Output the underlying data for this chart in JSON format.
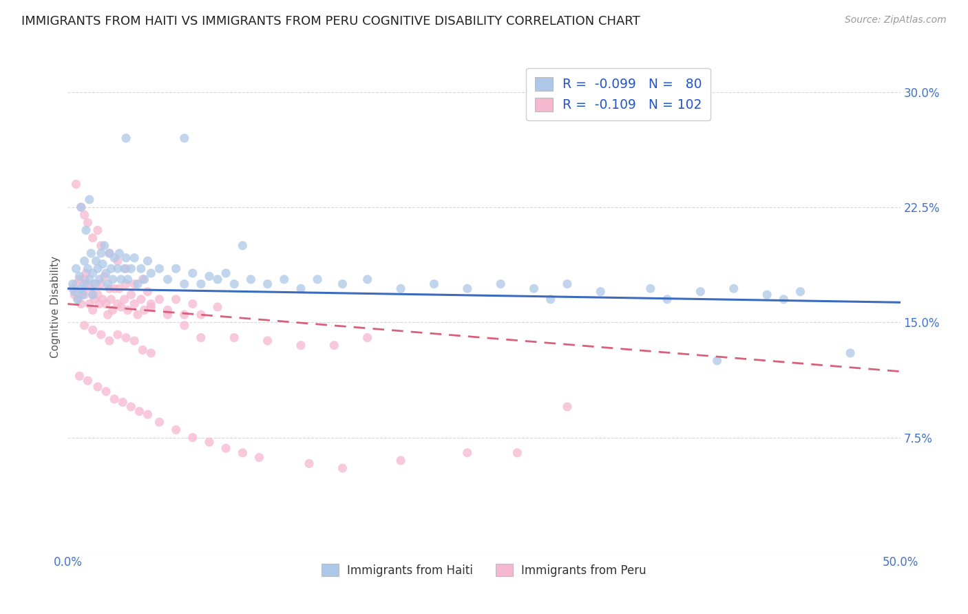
{
  "title": "IMMIGRANTS FROM HAITI VS IMMIGRANTS FROM PERU COGNITIVE DISABILITY CORRELATION CHART",
  "source_text": "Source: ZipAtlas.com",
  "ylabel": "Cognitive Disability",
  "xlim": [
    0.0,
    0.5
  ],
  "ylim": [
    0.0,
    0.32
  ],
  "xticks": [
    0.0,
    0.1,
    0.2,
    0.3,
    0.4,
    0.5
  ],
  "yticks": [
    0.0,
    0.075,
    0.15,
    0.225,
    0.3
  ],
  "haiti_R": -0.099,
  "haiti_N": 80,
  "peru_R": -0.109,
  "peru_N": 102,
  "haiti_color": "#adc8e8",
  "peru_color": "#f5b8cf",
  "haiti_line_color": "#3b6bbf",
  "peru_line_color": "#d9607a",
  "legend_label_haiti": "Immigrants from Haiti",
  "legend_label_peru": "Immigrants from Peru",
  "background_color": "#ffffff",
  "grid_color": "#d8d8d8",
  "title_color": "#222222",
  "title_fontsize": 13,
  "axis_label_color": "#4472c4",
  "haiti_trend_x0": 0.0,
  "haiti_trend_y0": 0.172,
  "haiti_trend_x1": 0.5,
  "haiti_trend_y1": 0.163,
  "peru_trend_x0": 0.0,
  "peru_trend_y0": 0.162,
  "peru_trend_x1": 0.5,
  "peru_trend_y1": 0.118,
  "haiti_scatter_x": [
    0.003,
    0.004,
    0.005,
    0.006,
    0.007,
    0.008,
    0.009,
    0.01,
    0.01,
    0.011,
    0.012,
    0.013,
    0.014,
    0.015,
    0.015,
    0.016,
    0.017,
    0.018,
    0.019,
    0.02,
    0.021,
    0.022,
    0.023,
    0.024,
    0.025,
    0.026,
    0.027,
    0.028,
    0.03,
    0.031,
    0.032,
    0.034,
    0.035,
    0.036,
    0.038,
    0.04,
    0.042,
    0.044,
    0.046,
    0.048,
    0.05,
    0.055,
    0.06,
    0.065,
    0.07,
    0.075,
    0.08,
    0.085,
    0.09,
    0.095,
    0.1,
    0.11,
    0.12,
    0.13,
    0.14,
    0.15,
    0.165,
    0.18,
    0.2,
    0.22,
    0.24,
    0.26,
    0.28,
    0.3,
    0.32,
    0.35,
    0.38,
    0.4,
    0.42,
    0.44,
    0.008,
    0.013,
    0.035,
    0.07,
    0.105,
    0.29,
    0.36,
    0.39,
    0.43,
    0.47
  ],
  "haiti_scatter_y": [
    0.175,
    0.17,
    0.185,
    0.165,
    0.18,
    0.172,
    0.168,
    0.19,
    0.175,
    0.21,
    0.185,
    0.178,
    0.195,
    0.182,
    0.168,
    0.175,
    0.19,
    0.185,
    0.178,
    0.195,
    0.188,
    0.2,
    0.182,
    0.175,
    0.195,
    0.185,
    0.178,
    0.192,
    0.185,
    0.195,
    0.178,
    0.185,
    0.192,
    0.178,
    0.185,
    0.192,
    0.175,
    0.185,
    0.178,
    0.19,
    0.182,
    0.185,
    0.178,
    0.185,
    0.175,
    0.182,
    0.175,
    0.18,
    0.178,
    0.182,
    0.175,
    0.178,
    0.175,
    0.178,
    0.172,
    0.178,
    0.175,
    0.178,
    0.172,
    0.175,
    0.172,
    0.175,
    0.172,
    0.175,
    0.17,
    0.172,
    0.17,
    0.172,
    0.168,
    0.17,
    0.225,
    0.23,
    0.27,
    0.27,
    0.2,
    0.165,
    0.165,
    0.125,
    0.165,
    0.13
  ],
  "peru_scatter_x": [
    0.003,
    0.004,
    0.005,
    0.006,
    0.007,
    0.008,
    0.009,
    0.01,
    0.01,
    0.011,
    0.012,
    0.013,
    0.014,
    0.015,
    0.015,
    0.016,
    0.017,
    0.018,
    0.019,
    0.02,
    0.021,
    0.022,
    0.023,
    0.024,
    0.025,
    0.026,
    0.027,
    0.028,
    0.03,
    0.031,
    0.032,
    0.034,
    0.035,
    0.036,
    0.038,
    0.04,
    0.042,
    0.044,
    0.046,
    0.048,
    0.05,
    0.055,
    0.06,
    0.065,
    0.07,
    0.075,
    0.08,
    0.09,
    0.005,
    0.008,
    0.01,
    0.012,
    0.015,
    0.018,
    0.02,
    0.025,
    0.03,
    0.035,
    0.04,
    0.045,
    0.05,
    0.06,
    0.07,
    0.08,
    0.1,
    0.12,
    0.14,
    0.16,
    0.18,
    0.01,
    0.015,
    0.02,
    0.025,
    0.03,
    0.035,
    0.04,
    0.045,
    0.05,
    0.007,
    0.012,
    0.018,
    0.023,
    0.028,
    0.033,
    0.038,
    0.043,
    0.048,
    0.055,
    0.065,
    0.075,
    0.085,
    0.095,
    0.105,
    0.115,
    0.145,
    0.165,
    0.2,
    0.24,
    0.27,
    0.3
  ],
  "peru_scatter_y": [
    0.172,
    0.168,
    0.175,
    0.165,
    0.178,
    0.162,
    0.17,
    0.178,
    0.168,
    0.182,
    0.175,
    0.162,
    0.172,
    0.168,
    0.158,
    0.165,
    0.175,
    0.168,
    0.162,
    0.175,
    0.165,
    0.18,
    0.162,
    0.155,
    0.172,
    0.165,
    0.158,
    0.172,
    0.162,
    0.172,
    0.16,
    0.165,
    0.175,
    0.158,
    0.168,
    0.162,
    0.155,
    0.165,
    0.158,
    0.17,
    0.16,
    0.165,
    0.158,
    0.165,
    0.155,
    0.162,
    0.155,
    0.16,
    0.24,
    0.225,
    0.22,
    0.215,
    0.205,
    0.21,
    0.2,
    0.195,
    0.19,
    0.185,
    0.175,
    0.178,
    0.162,
    0.155,
    0.148,
    0.14,
    0.14,
    0.138,
    0.135,
    0.135,
    0.14,
    0.148,
    0.145,
    0.142,
    0.138,
    0.142,
    0.14,
    0.138,
    0.132,
    0.13,
    0.115,
    0.112,
    0.108,
    0.105,
    0.1,
    0.098,
    0.095,
    0.092,
    0.09,
    0.085,
    0.08,
    0.075,
    0.072,
    0.068,
    0.065,
    0.062,
    0.058,
    0.055,
    0.06,
    0.065,
    0.065,
    0.095
  ]
}
